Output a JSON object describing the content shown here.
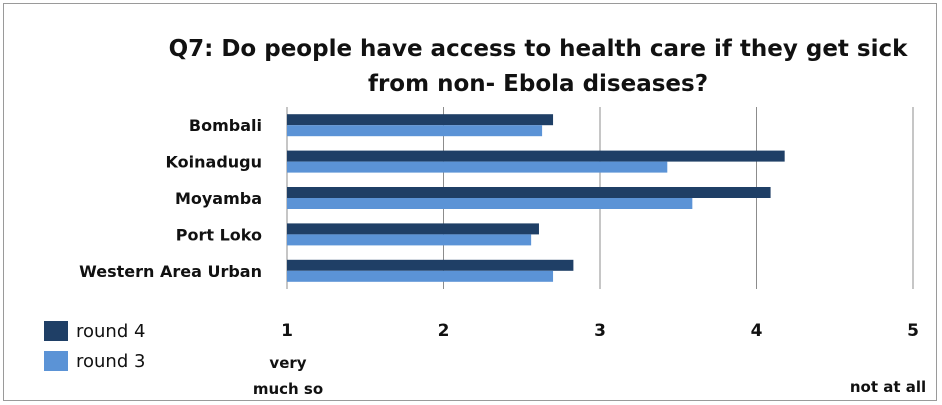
{
  "chart_data": {
    "type": "bar",
    "orientation": "horizontal",
    "title_lines": [
      "Q7: Do people have access to health care if they get sick",
      "from non- Ebola diseases?"
    ],
    "categories": [
      "Bombali",
      "Koinadugu",
      "Moyamba",
      "Port Loko",
      "Western Area Urban"
    ],
    "series": [
      {
        "name": "round 4",
        "color": "#1f3f66",
        "values": [
          2.7,
          4.18,
          4.09,
          2.61,
          2.83
        ]
      },
      {
        "name": "round 3",
        "color": "#5b93d6",
        "values": [
          2.63,
          3.43,
          3.59,
          2.56,
          2.7
        ]
      }
    ],
    "xlim": [
      1,
      5
    ],
    "xticks": [
      "1",
      "2",
      "3",
      "4",
      "5"
    ],
    "x_annotation_low": [
      "very",
      "much so"
    ],
    "x_annotation_high": "not at all",
    "grid": true,
    "legend_position": "bottom-left"
  }
}
